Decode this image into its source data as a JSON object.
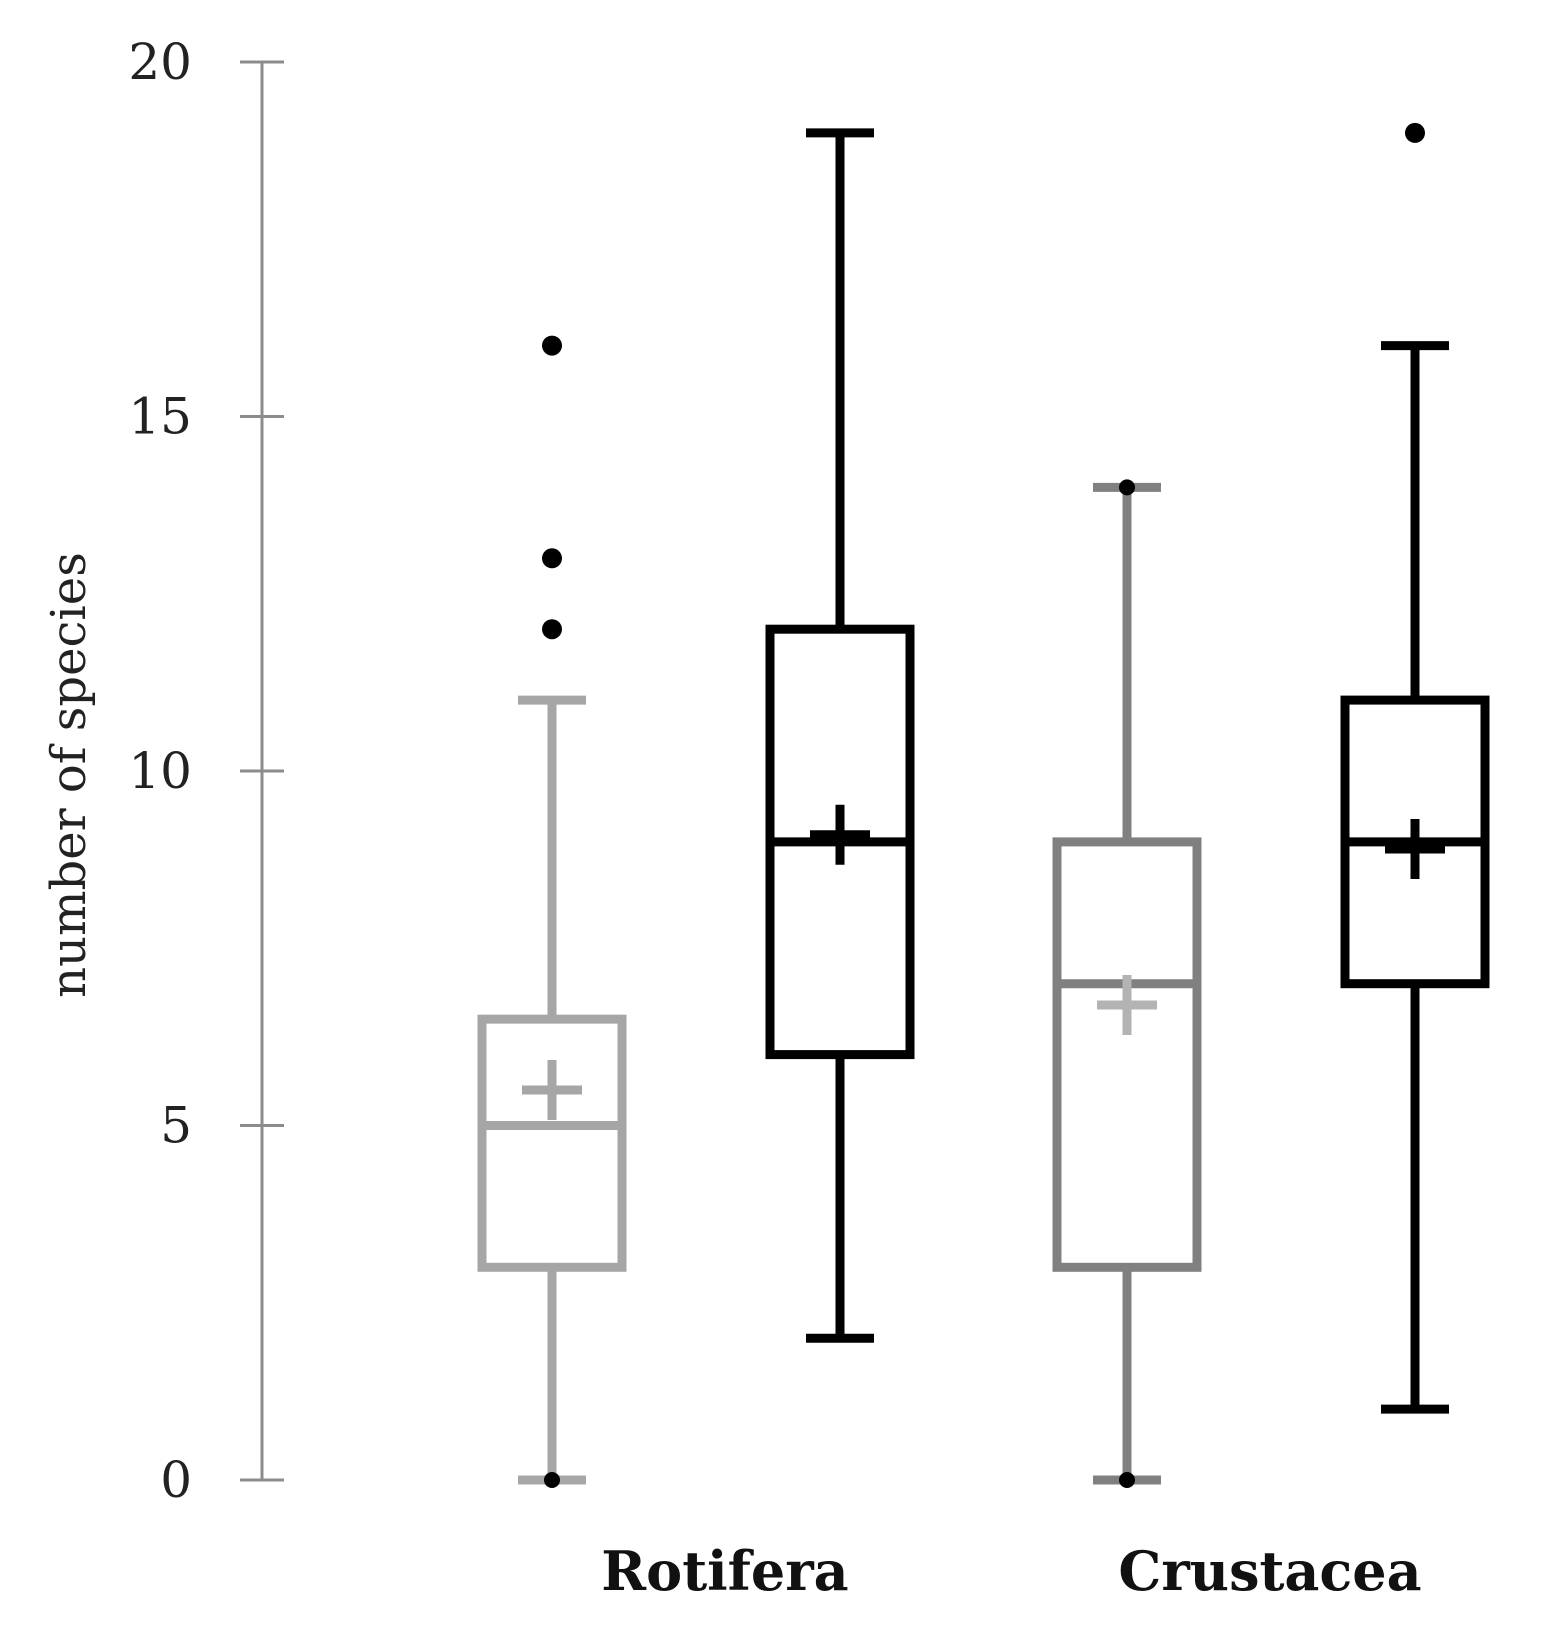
{
  "chart_data": {
    "type": "box",
    "title": "",
    "xlabel": "",
    "ylabel": "number of species",
    "ylim": [
      0,
      20
    ],
    "yticks": [
      0,
      5,
      10,
      15,
      20
    ],
    "categories": [
      "Rotifera",
      "Crustacea"
    ],
    "boxes": [
      {
        "category": "Rotifera",
        "group": 1,
        "color": "#a6a6a6",
        "whisker_low": 0,
        "q1": 3,
        "median": 5,
        "q3": 6.5,
        "whisker_high": 11,
        "mean": 5.5,
        "outliers": [
          12,
          13,
          16
        ]
      },
      {
        "category": "Rotifera",
        "group": 2,
        "color": "#000000",
        "whisker_low": 2,
        "q1": 6,
        "median": 9,
        "q3": 12,
        "whisker_high": 19,
        "mean": 9.1,
        "outliers": []
      },
      {
        "category": "Crustacea",
        "group": 1,
        "color": "#808080",
        "whisker_low": 0,
        "q1": 3,
        "median": 7,
        "q3": 9,
        "whisker_high": 14,
        "mean": 6.7,
        "outliers": []
      },
      {
        "category": "Crustacea",
        "group": 2,
        "color": "#000000",
        "whisker_low": 1,
        "q1": 7,
        "median": 9,
        "q3": 11,
        "whisker_high": 16,
        "mean": 8.9,
        "outliers": [
          19
        ]
      }
    ]
  },
  "colors": {
    "axis": "#8c8c8c",
    "text": "#222222"
  }
}
